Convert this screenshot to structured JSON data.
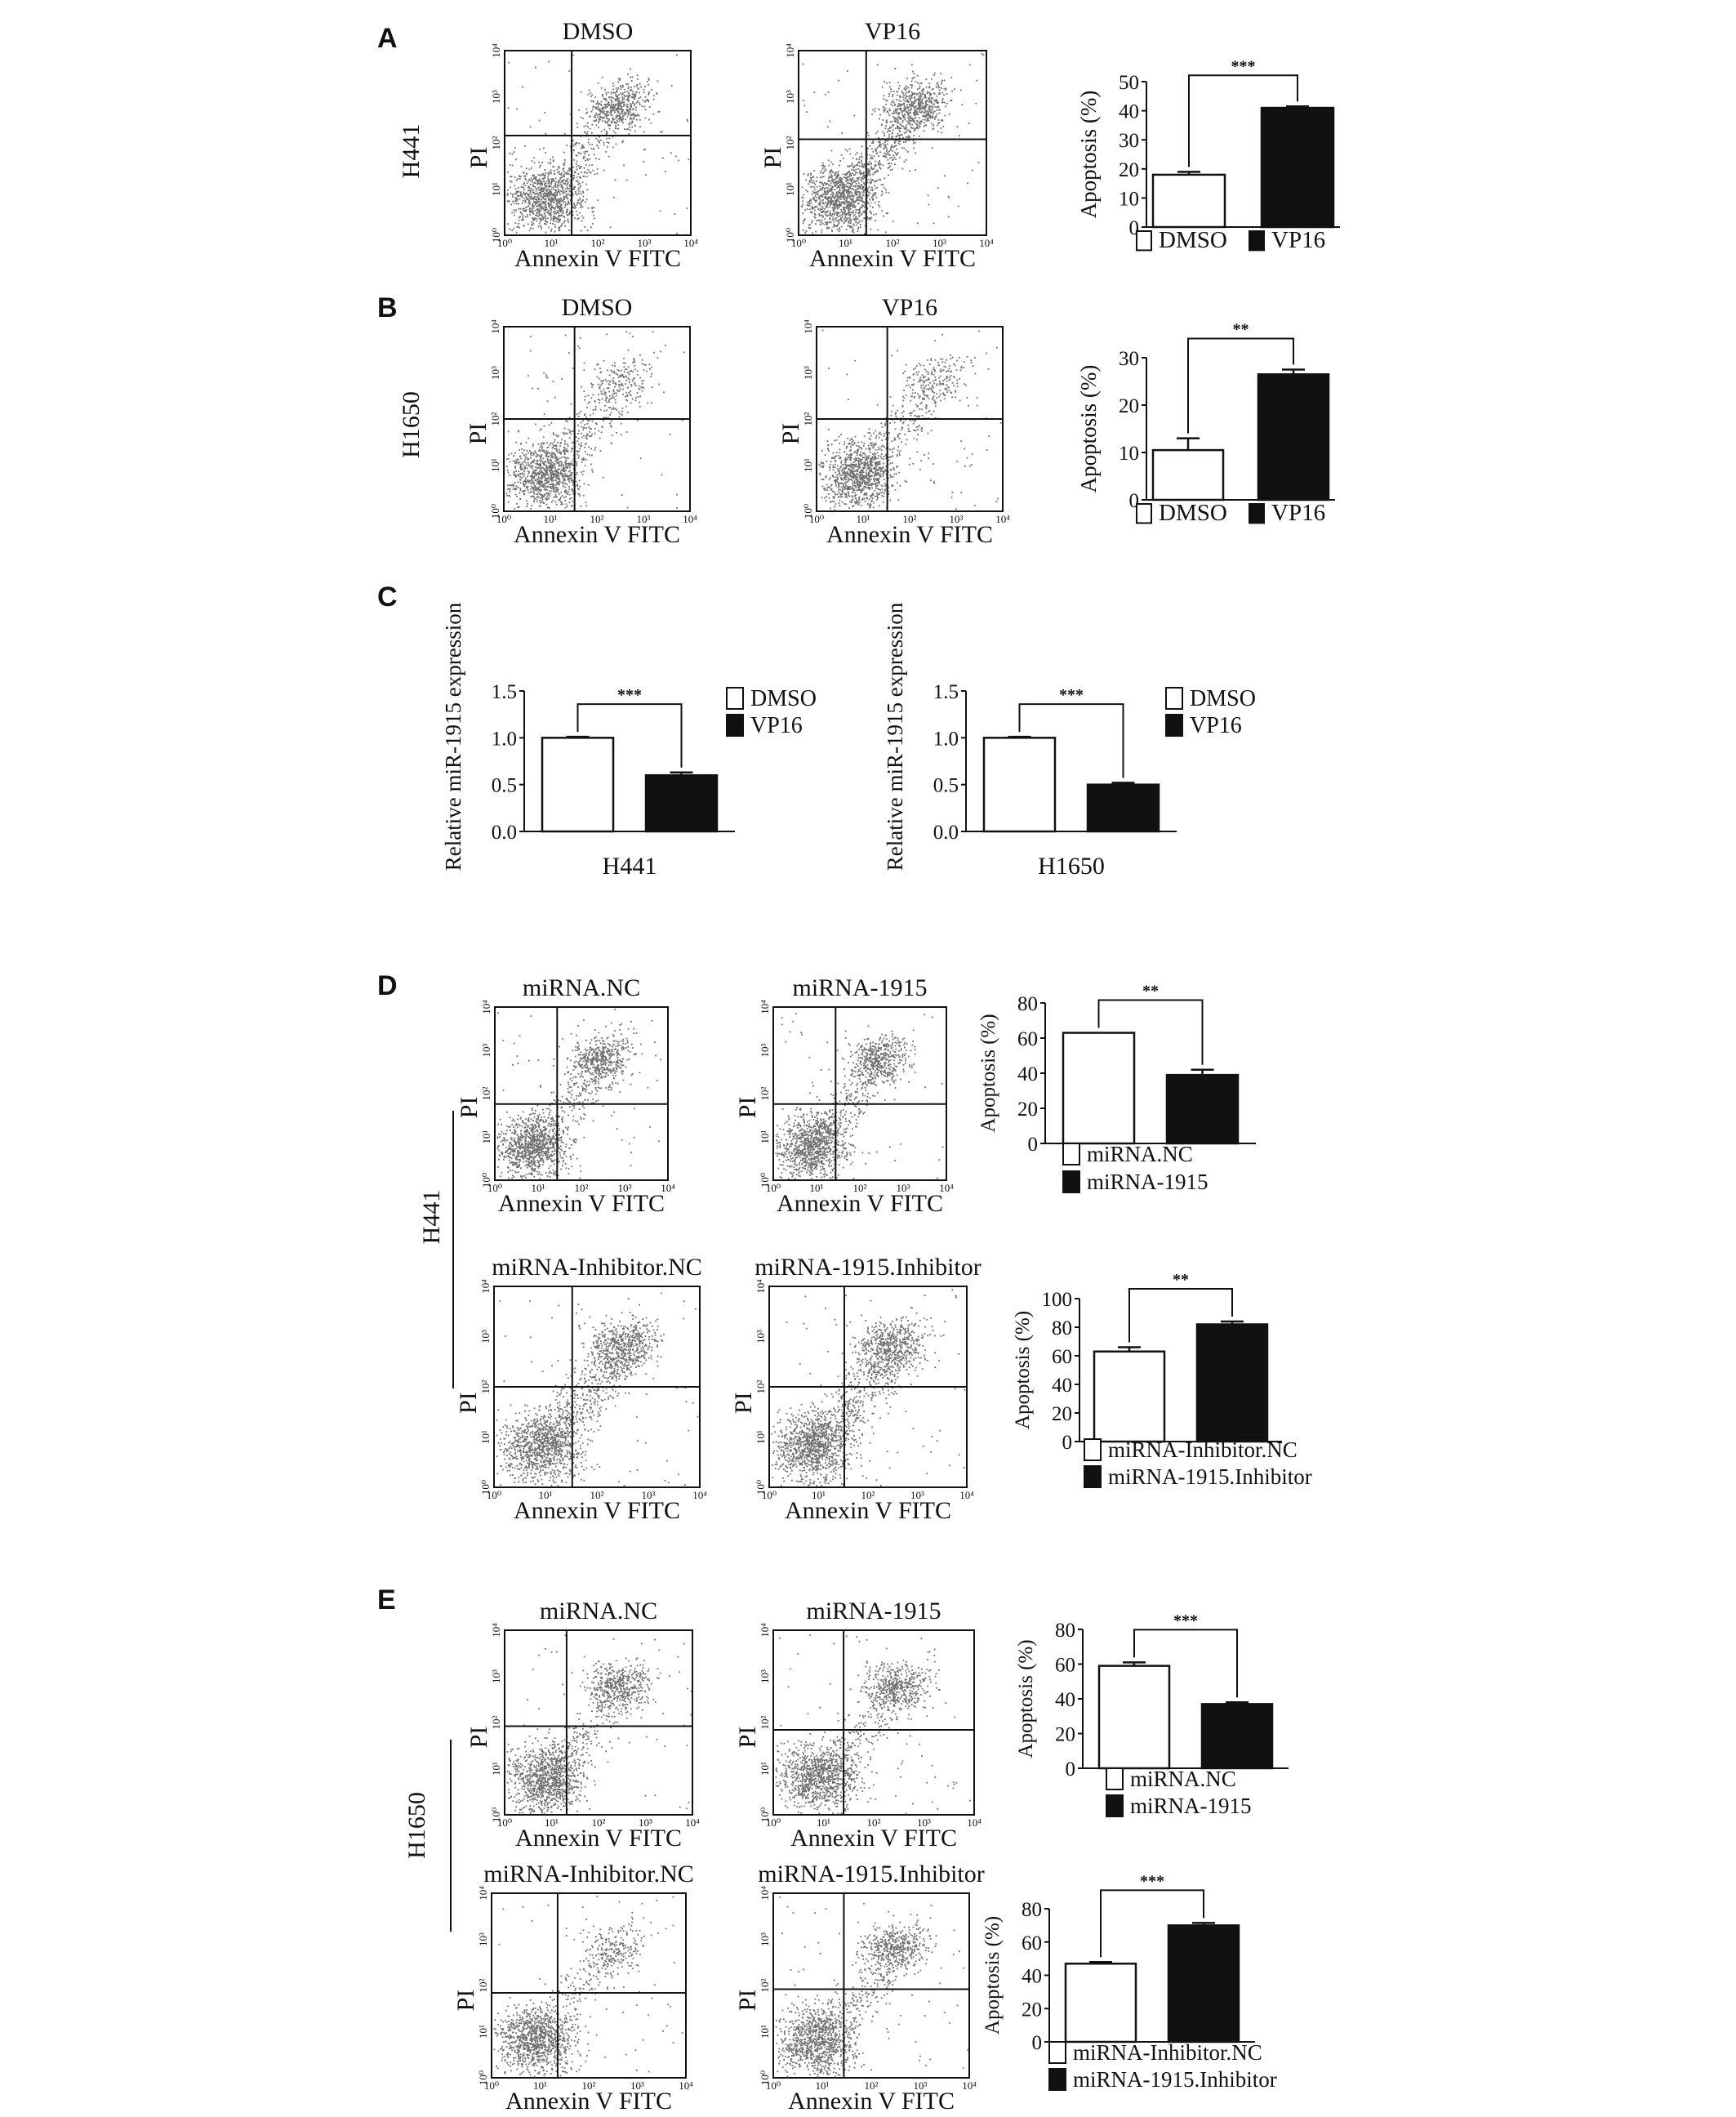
{
  "panels": {
    "A": {
      "letter": "A",
      "cell_line": "H441",
      "flow_plots": [
        {
          "title": "DMSO",
          "x_axis": "Annexin  V FITC",
          "y_axis": "PI",
          "ticks": [
            "10⁰",
            "10¹",
            "10²",
            "10³",
            "10⁴"
          ]
        },
        {
          "title": "VP16",
          "x_axis": "Annexin  V FITC",
          "y_axis": "PI",
          "ticks": [
            "10⁰",
            "10¹",
            "10²",
            "10³",
            "10⁴"
          ]
        }
      ]
    },
    "B": {
      "letter": "B",
      "cell_line": "H1650",
      "flow_plots": [
        {
          "title": "DMSO",
          "x_axis": "Annexin  V FITC",
          "y_axis": "PI",
          "ticks": [
            "10⁰",
            "10¹",
            "10²",
            "10³",
            "10⁴"
          ]
        },
        {
          "title": "VP16",
          "x_axis": "Annexin  V FITC",
          "y_axis": "PI",
          "ticks": [
            "10⁰",
            "10¹",
            "10²",
            "10³",
            "10⁴"
          ]
        }
      ]
    },
    "C": {
      "letter": "C"
    },
    "D": {
      "letter": "D",
      "cell_line": "H441",
      "flow_plots": [
        {
          "title": "miRNA.NC",
          "x_axis": "Annexin  V FITC",
          "y_axis": "PI",
          "ticks": [
            "10⁰",
            "10¹",
            "10²",
            "10³",
            "10⁴"
          ]
        },
        {
          "title": "miRNA-1915",
          "x_axis": "Annexin  V FITC",
          "y_axis": "PI",
          "ticks": [
            "10⁰",
            "10¹",
            "10²",
            "10³",
            "10⁴"
          ]
        },
        {
          "title": "miRNA-Inhibitor.NC",
          "x_axis": "Annexin  V FITC",
          "y_axis": "PI",
          "ticks": [
            "10⁰",
            "10¹",
            "10²",
            "10³",
            "10⁴"
          ]
        },
        {
          "title": "miRNA-1915.Inhibitor",
          "x_axis": "Annexin  V FITC",
          "y_axis": "PI",
          "ticks": [
            "10⁰",
            "10¹",
            "10²",
            "10³",
            "10⁴"
          ]
        }
      ]
    },
    "E": {
      "letter": "E",
      "cell_line": "H1650",
      "flow_plots": [
        {
          "title": "miRNA.NC",
          "x_axis": "Annexin  V FITC",
          "y_axis": "PI",
          "ticks": [
            "10⁰",
            "10¹",
            "10²",
            "10³",
            "10⁴"
          ]
        },
        {
          "title": "miRNA-1915",
          "x_axis": "Annexin  V FITC",
          "y_axis": "PI",
          "ticks": [
            "10⁰",
            "10¹",
            "10²",
            "10³",
            "10⁴"
          ]
        },
        {
          "title": "miRNA-Inhibitor.NC",
          "x_axis": "Annexin  V FITC",
          "y_axis": "PI",
          "ticks": [
            "10⁰",
            "10¹",
            "10²",
            "10³",
            "10⁴"
          ]
        },
        {
          "title": "miRNA-1915.Inhibitor",
          "x_axis": "Annexin  V FITC",
          "y_axis": "PI",
          "ticks": [
            "10⁰",
            "10¹",
            "10²",
            "10³",
            "10⁴"
          ]
        }
      ]
    }
  },
  "colors": {
    "control_bar": "#ffffff",
    "treated_bar": "#111111",
    "dots": "#6f6f6f",
    "lines": "#111111"
  },
  "chart_data": [
    {
      "id": "A-bar",
      "type": "bar",
      "ylabel": "Apoptosis (%)",
      "ylim": [
        0,
        50
      ],
      "yticks": [
        0,
        10,
        20,
        30,
        40,
        50
      ],
      "categories": [
        "DMSO",
        "VP16"
      ],
      "values": [
        18,
        41
      ],
      "errors": [
        1,
        0.5
      ],
      "significance": "***",
      "legend": [
        "DMSO",
        "VP16"
      ],
      "legend_placement": "bottom"
    },
    {
      "id": "B-bar",
      "type": "bar",
      "ylabel": "Apoptosis (%)",
      "ylim": [
        0,
        30
      ],
      "yticks": [
        0,
        10,
        20,
        30
      ],
      "categories": [
        "DMSO",
        "VP16"
      ],
      "values": [
        10.5,
        26.5
      ],
      "errors": [
        2.5,
        1
      ],
      "significance": "**",
      "legend": [
        "DMSO",
        "VP16"
      ],
      "legend_placement": "bottom"
    },
    {
      "id": "C-H441",
      "type": "bar",
      "ylabel": "Relative miR-1915 expression",
      "xlabel": "H441",
      "ylim": [
        0,
        1.5
      ],
      "yticks": [
        "0.0",
        "0.5",
        "1.0",
        "1.5"
      ],
      "categories": [
        "DMSO",
        "VP16"
      ],
      "values": [
        1.0,
        0.6
      ],
      "errors": [
        0.01,
        0.03
      ],
      "significance": "***",
      "legend": [
        "DMSO",
        "VP16"
      ],
      "legend_placement": "right"
    },
    {
      "id": "C-H1650",
      "type": "bar",
      "ylabel": "Relative miR-1915 expression",
      "xlabel": "H1650",
      "ylim": [
        0,
        1.5
      ],
      "yticks": [
        "0.0",
        "0.5",
        "1.0",
        "1.5"
      ],
      "categories": [
        "DMSO",
        "VP16"
      ],
      "values": [
        1.0,
        0.5
      ],
      "errors": [
        0.01,
        0.02
      ],
      "significance": "***",
      "legend": [
        "DMSO",
        "VP16"
      ],
      "legend_placement": "right"
    },
    {
      "id": "D-bar1",
      "type": "bar",
      "ylabel": "Apoptosis (%)",
      "ylim": [
        0,
        80
      ],
      "yticks": [
        0,
        20,
        40,
        60,
        80
      ],
      "categories": [
        "miRNA.NC",
        "miRNA-1915"
      ],
      "values": [
        63,
        39
      ],
      "errors": [
        0,
        3
      ],
      "significance": "**",
      "legend": [
        "miRNA.NC",
        "miRNA-1915"
      ],
      "legend_placement": "bottom"
    },
    {
      "id": "D-bar2",
      "type": "bar",
      "ylabel": "Apoptosis (%)",
      "ylim": [
        0,
        100
      ],
      "yticks": [
        0,
        20,
        40,
        60,
        80,
        100
      ],
      "categories": [
        "miRNA-Inhibitor.NC",
        "miRNA-1915.Inhibitor"
      ],
      "values": [
        63,
        82
      ],
      "errors": [
        3,
        2
      ],
      "significance": "**",
      "legend": [
        "miRNA-Inhibitor.NC",
        "miRNA-1915.Inhibitor"
      ],
      "legend_placement": "bottom"
    },
    {
      "id": "E-bar1",
      "type": "bar",
      "ylabel": "Apoptosis (%)",
      "ylim": [
        0,
        80
      ],
      "yticks": [
        0,
        20,
        40,
        60,
        80
      ],
      "categories": [
        "miRNA.NC",
        "miRNA-1915"
      ],
      "values": [
        59,
        37
      ],
      "errors": [
        2,
        1
      ],
      "significance": "***",
      "legend": [
        "miRNA.NC",
        "miRNA-1915"
      ],
      "legend_placement": "bottom"
    },
    {
      "id": "E-bar2",
      "type": "bar",
      "ylabel": "Apoptosis (%)",
      "ylim": [
        0,
        80
      ],
      "yticks": [
        0,
        20,
        40,
        60,
        80
      ],
      "categories": [
        "miRNA-Inhibitor.NC",
        "miRNA-1915.Inhibitor"
      ],
      "values": [
        47,
        70
      ],
      "errors": [
        1,
        1.5
      ],
      "significance": "***",
      "legend": [
        "miRNA-Inhibitor.NC",
        "miRNA-1915.Inhibitor"
      ],
      "legend_placement": "bottom"
    }
  ]
}
